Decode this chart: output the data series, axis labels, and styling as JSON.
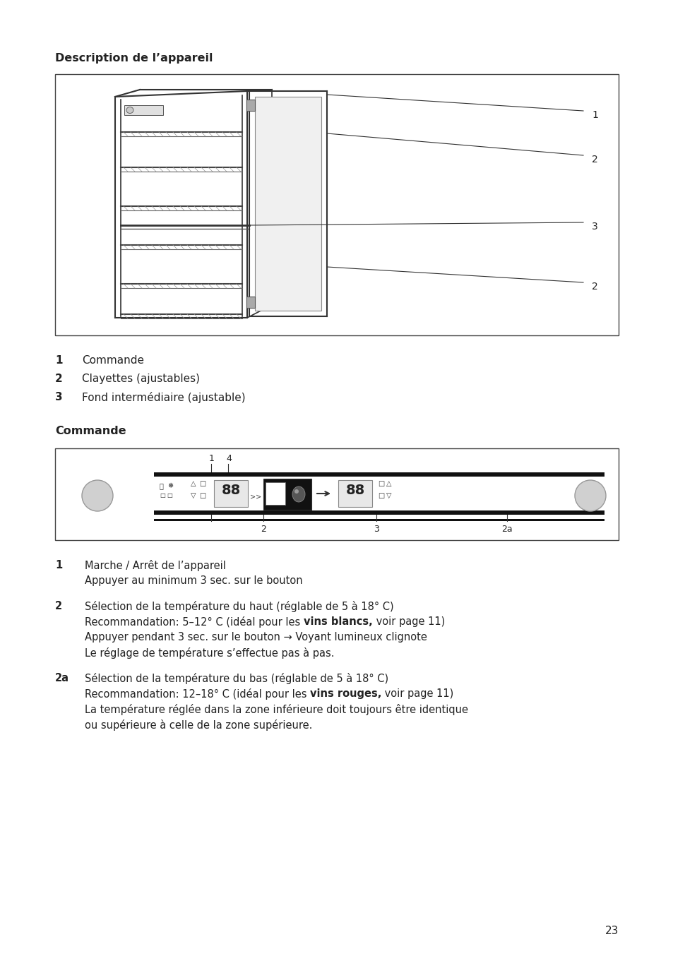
{
  "background_color": "#ffffff",
  "page_number": "23",
  "section1_title": "Description de l’appareil",
  "list1": [
    {
      "num": "1",
      "text": "Commande"
    },
    {
      "num": "2",
      "text": "Clayettes (ajustables)"
    },
    {
      "num": "3",
      "text": "Fond intermédiaire (ajustable)"
    }
  ],
  "section2_title": "Commande",
  "list2": [
    {
      "num": "1",
      "lines": [
        [
          {
            "text": "Marche / Arrêt de l’appareil",
            "bold": false
          }
        ],
        [
          {
            "text": "Appuyer au minimum 3 sec. sur le bouton",
            "bold": false
          }
        ]
      ]
    },
    {
      "num": "2",
      "lines": [
        [
          {
            "text": "Sélection de la température du haut (réglable de 5 à 18° C)",
            "bold": false
          }
        ],
        [
          {
            "text": "Recommandation: 5–12° C (idéal pour les ",
            "bold": false
          },
          {
            "text": "vins blancs,",
            "bold": true
          },
          {
            "text": " voir page 11)",
            "bold": false
          }
        ],
        [
          {
            "text": "Appuyer pendant 3 sec. sur le bouton → Voyant lumineux clignote",
            "bold": false
          }
        ],
        [
          {
            "text": "Le réglage de température s’effectue pas à pas.",
            "bold": false
          }
        ]
      ]
    },
    {
      "num": "2a",
      "lines": [
        [
          {
            "text": "Sélection de la température du bas (réglable de 5 à 18° C)",
            "bold": false
          }
        ],
        [
          {
            "text": "Recommandation: 12–18° C (idéal pour les ",
            "bold": false
          },
          {
            "text": "vins rouges,",
            "bold": true
          },
          {
            "text": " voir page 11)",
            "bold": false
          }
        ],
        [
          {
            "text": "La température réglée dans la zone inférieure doit toujours être identique",
            "bold": false
          }
        ],
        [
          {
            "text": "ou supérieure à celle de la zone supérieure.",
            "bold": false
          }
        ]
      ]
    }
  ]
}
